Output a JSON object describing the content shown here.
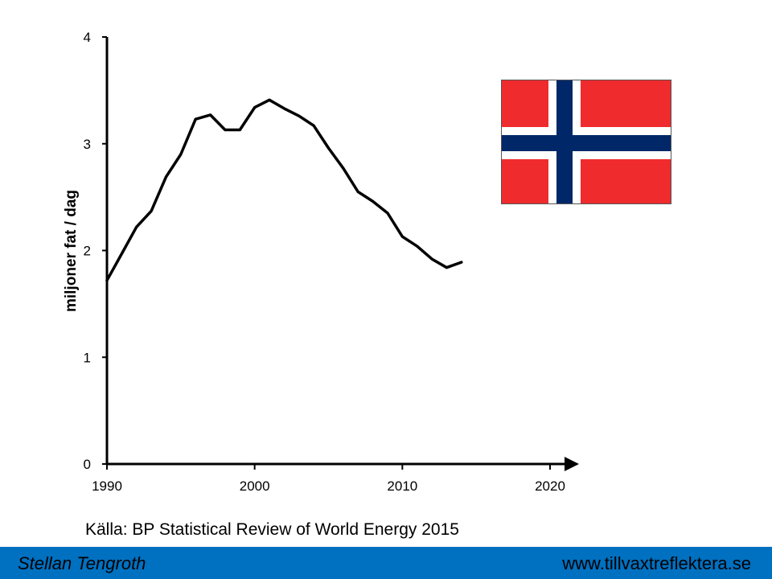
{
  "chart_data": {
    "type": "line",
    "ylabel": "miljoner fat / dag",
    "xlim": [
      1990,
      2020
    ],
    "ylim": [
      0,
      4
    ],
    "x_ticks": [
      1990,
      2000,
      2010,
      2020
    ],
    "y_ticks": [
      0,
      1,
      2,
      3,
      4
    ],
    "grid": false,
    "line_color": "#000000",
    "series": [
      {
        "x": [
          1990,
          1991,
          1992,
          1993,
          1994,
          1995,
          1996,
          1997,
          1998,
          1999,
          2000,
          2001,
          2002,
          2003,
          2004,
          2005,
          2006,
          2007,
          2008,
          2009,
          2010,
          2011,
          2012,
          2013,
          2014
        ],
        "values": [
          1.72,
          1.97,
          2.22,
          2.37,
          2.69,
          2.9,
          3.23,
          3.27,
          3.13,
          3.13,
          3.34,
          3.41,
          3.33,
          3.26,
          3.17,
          2.96,
          2.77,
          2.55,
          2.46,
          2.35,
          2.13,
          2.04,
          1.92,
          1.84,
          1.89
        ]
      }
    ]
  },
  "source": "Källa: BP Statistical Review of World Energy 2015",
  "flag": {
    "icon": "norway-flag-icon",
    "red": "#ef2b2d",
    "white": "#ffffff",
    "blue": "#002868"
  },
  "footer": {
    "author": "Stellan Tengroth",
    "url": "www.tillvaxtreflektera.se",
    "background": "#0070c0"
  }
}
